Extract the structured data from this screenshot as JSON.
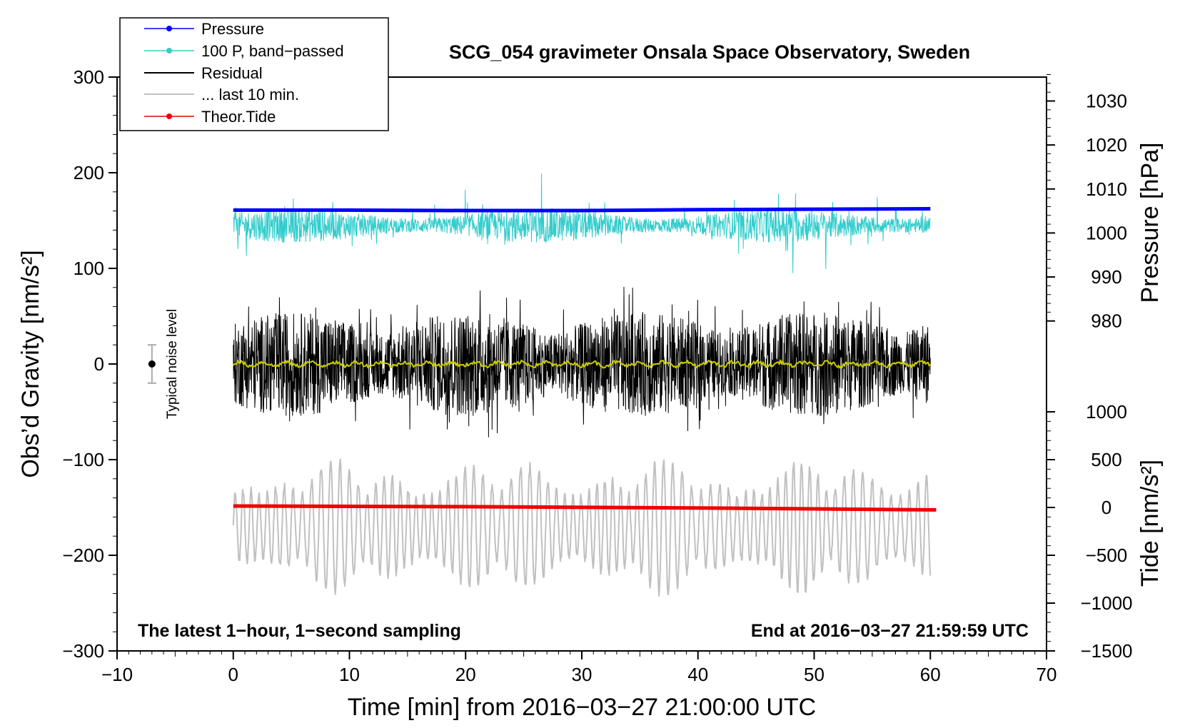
{
  "chart_data": {
    "type": "line",
    "title": "SCG_054 gravimeter Onsala Space Observatory, Sweden",
    "xlabel": "Time [min] from 2016−03−27 21:00:00 UTC",
    "ylabel_left": "Obs’d Gravity [nm/s²]",
    "ylabel_right_pressure": "Pressure [hPa]",
    "ylabel_right_tide": "Tide [nm/s²]",
    "xlim": [
      -10,
      70
    ],
    "ylim": [
      -300,
      300
    ],
    "x_ticks": [
      -10,
      0,
      10,
      20,
      30,
      40,
      50,
      60,
      70
    ],
    "x_tick_labels": [
      "−10",
      "0",
      "10",
      "20",
      "30",
      "40",
      "50",
      "60",
      "70"
    ],
    "y_ticks": [
      -300,
      -200,
      -100,
      0,
      100,
      200,
      300
    ],
    "y_tick_labels": [
      "−300",
      "−200",
      "−100",
      "0",
      "100",
      "200",
      "300"
    ],
    "pressure_axis": {
      "ticks": [
        980,
        990,
        1000,
        1010,
        1020,
        1030
      ],
      "tick_labels": [
        "980",
        "990",
        "1000",
        "1010",
        "1020",
        "1030"
      ],
      "gravity_at_980": 45,
      "gravity_per_hpa": 4.6
    },
    "tide_axis": {
      "ticks": [
        -1500,
        -1000,
        -500,
        0,
        500,
        1000
      ],
      "tick_labels": [
        "−1500",
        "−1000",
        "−500",
        "0",
        "500",
        "1000"
      ],
      "gravity_at_0": -150,
      "gravity_per_unit": 0.1
    },
    "series": [
      {
        "name": "Pressure",
        "color": "#0000ff",
        "unit": "hPa",
        "x": [
          0,
          10,
          20,
          30,
          40,
          50,
          60
        ],
        "values": [
          1005.2,
          1005.2,
          1005.1,
          1005.1,
          1005.3,
          1005.4,
          1005.5
        ]
      },
      {
        "name": "100 P, band−passed",
        "color": "#33cccc",
        "unit": "nm/s² (plotted offset 145)",
        "baseline": 145,
        "amplitude": 45
      },
      {
        "name": "Residual",
        "color": "#000000",
        "unit": "nm/s²",
        "baseline": 0,
        "amplitude": 85
      },
      {
        "name": "... last 10 min.",
        "color": "#c0c0c0",
        "unit": "nm/s² (plotted offset −170)",
        "baseline": -170,
        "amplitude": 70
      },
      {
        "name": "Theor.Tide",
        "color": "#ee0000",
        "unit": "nm/s²",
        "x": [
          0,
          20,
          40,
          60.5
        ],
        "values": [
          15,
          8,
          -5,
          -25
        ]
      },
      {
        "name": "smoothed residual",
        "color": "#cccc00",
        "unit": "nm/s²",
        "baseline": 0,
        "amplitude": 4
      }
    ],
    "noise_bar": {
      "label": "Typical noise level",
      "x": -7,
      "center": 0,
      "halfwidth": 20
    },
    "annotations": {
      "left": "The latest 1−hour, 1−second sampling",
      "right": "End at 2016−03−27 21:59:59 UTC"
    },
    "legend": [
      "Pressure",
      "100 P, band−passed",
      "Residual",
      "... last 10 min.",
      "Theor.Tide"
    ],
    "legend_position": "top-left"
  }
}
